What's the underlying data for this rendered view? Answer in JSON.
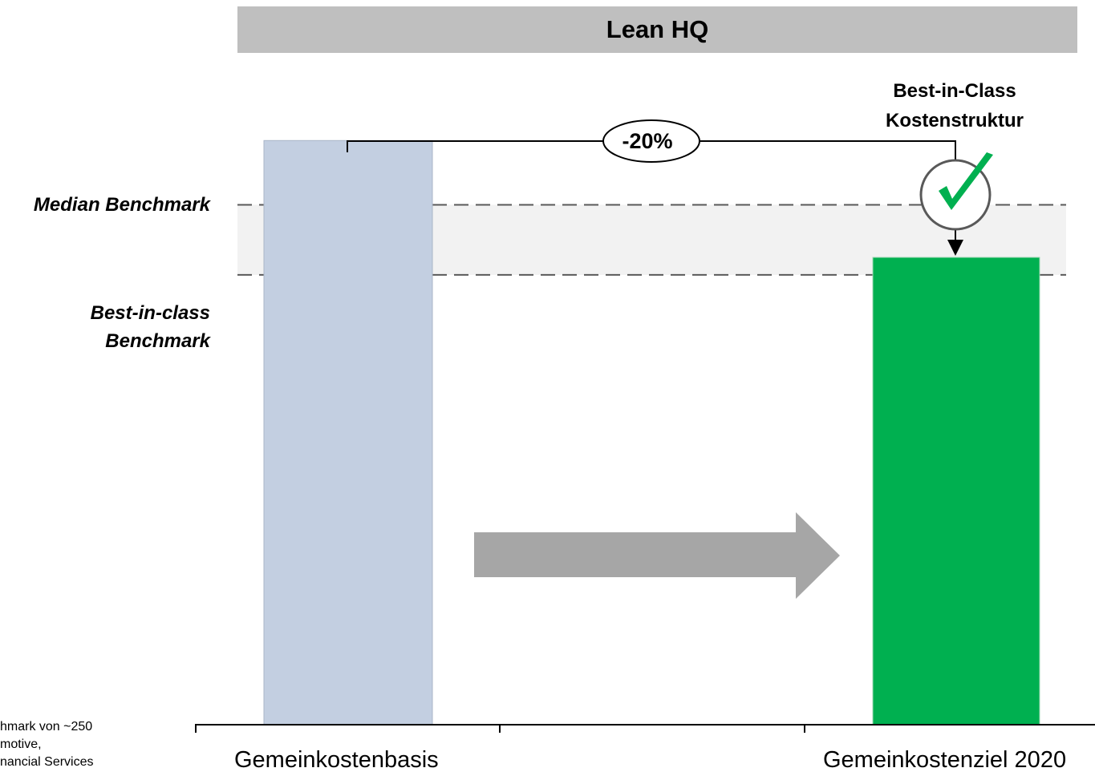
{
  "header": {
    "title": "Lean HQ"
  },
  "benchmarks": {
    "median_label": "Median Benchmark",
    "best_in_class_label": "Best-in-class Benchmark"
  },
  "annotation": {
    "reduction_label": "-20%",
    "target_label": "Best-in-Class Kostenstruktur"
  },
  "footnote": {
    "lines": [
      "hmark von ~250",
      "motive,",
      "nancial Services"
    ]
  },
  "colors": {
    "base_bar": "#c3cfe1",
    "target_bar": "#00b050",
    "band": "#f2f2f2",
    "arrow": "#a6a6a6",
    "title_bar": "#bfbfbf",
    "check": "#00b050"
  },
  "chart_data": {
    "type": "bar",
    "categories": [
      "Gemeinkostenbasis",
      "Gemeinkostenziel 2020"
    ],
    "values": [
      100,
      80
    ],
    "ylim": [
      0,
      115
    ],
    "reference_lines": [
      {
        "name": "Median Benchmark",
        "value": 89
      },
      {
        "name": "Best-in-class Benchmark",
        "value": 77
      }
    ],
    "xlabel": "",
    "ylabel": "",
    "grid": false,
    "legend": "none",
    "icons": [
      "checkmark-icon",
      "right-arrow-icon"
    ]
  }
}
